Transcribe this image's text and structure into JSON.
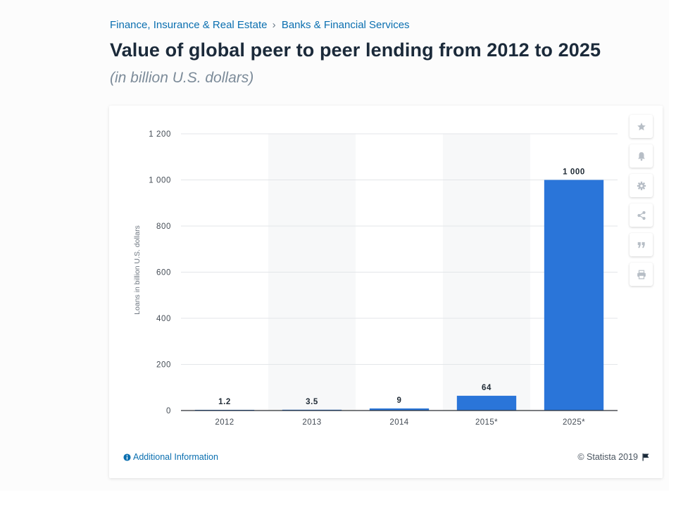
{
  "breadcrumb": {
    "items": [
      "Finance, Insurance & Real Estate",
      "Banks & Financial Services"
    ],
    "separator": "›"
  },
  "header": {
    "title": "Value of global peer to peer lending from 2012 to 2025",
    "subtitle": "(in billion U.S. dollars)"
  },
  "toolbar": {
    "icons": [
      "star-icon",
      "bell-icon",
      "gear-icon",
      "share-icon",
      "quote-icon",
      "print-icon"
    ]
  },
  "chart_data": {
    "type": "bar",
    "categories": [
      "2012",
      "2013",
      "2014",
      "2015*",
      "2025*"
    ],
    "values": [
      1.2,
      3.5,
      9,
      64,
      1000
    ],
    "value_labels": [
      "1.2",
      "3.5",
      "9",
      "64",
      "1 000"
    ],
    "ylabel": "Loans in billion U.S. dollars",
    "ylim": [
      0,
      1200
    ],
    "yticks": [
      0,
      200,
      400,
      600,
      800,
      1000,
      1200
    ],
    "ytick_labels": [
      "0",
      "200",
      "400",
      "600",
      "800",
      "1 000",
      "1 200"
    ],
    "grid": true,
    "bar_color": "#2a75d9",
    "legend": "none"
  },
  "footer": {
    "additional_info": "Additional Information",
    "copyright": "© Statista 2019"
  },
  "colors": {
    "accent": "#0a6fb0",
    "title": "#1b2a3a",
    "subtitle": "#7c8b99"
  }
}
